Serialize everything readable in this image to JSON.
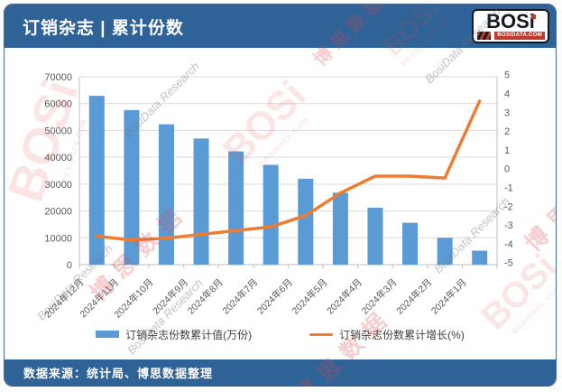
{
  "header": {
    "title": "订销杂志 | 累计份数"
  },
  "logo": {
    "name": "BOSi",
    "domain": "BOSIDATA.COM"
  },
  "footer": {
    "source": "数据来源：统计局、博思数据整理"
  },
  "watermark": {
    "cn": "博思数据",
    "en": "BosiData Research",
    "logo": "BOSi",
    "domain": "BOSIDATA.COM"
  },
  "colors": {
    "header_blue": "#2F6296",
    "bar_blue": "#5B9BD5",
    "line_orange": "#ED7D31",
    "gridline": "#D9D9D9",
    "axis_line": "#BFBFBF",
    "tick_text": "#595959",
    "watermark_red": "#E05252",
    "watermark_gray": "#6D7278"
  },
  "chart_data": {
    "type": "combo",
    "categories": [
      "2024年12月",
      "2024年11月",
      "2024年10月",
      "2024年9月",
      "2024年8月",
      "2024年7月",
      "2024年6月",
      "2024年5月",
      "2024年4月",
      "2024年3月",
      "2024年2月",
      "2024年1月"
    ],
    "series": [
      {
        "name": "订销杂志份数累计值(万份)",
        "type": "bar",
        "axis": "left",
        "color": "#5B9BD5",
        "values": [
          62900,
          57600,
          52300,
          47000,
          42200,
          37200,
          32000,
          26800,
          21200,
          15600,
          10000,
          5200
        ]
      },
      {
        "name": "订销杂志份数累计增长(%)",
        "type": "line",
        "axis": "right",
        "color": "#ED7D31",
        "values": [
          -3.6,
          -3.8,
          -3.7,
          -3.5,
          -3.3,
          -3.1,
          -2.5,
          -1.3,
          -0.4,
          -0.4,
          -0.5,
          3.6
        ]
      }
    ],
    "left_axis": {
      "min": 0,
      "max": 70000,
      "step": 10000
    },
    "right_axis": {
      "min": -5,
      "max": 5,
      "step": 1
    },
    "grid": true,
    "legend_position": "bottom",
    "title": "订销杂志 | 累计份数",
    "xlabel": "",
    "ylabel_left": "万份",
    "ylabel_right": "%"
  }
}
